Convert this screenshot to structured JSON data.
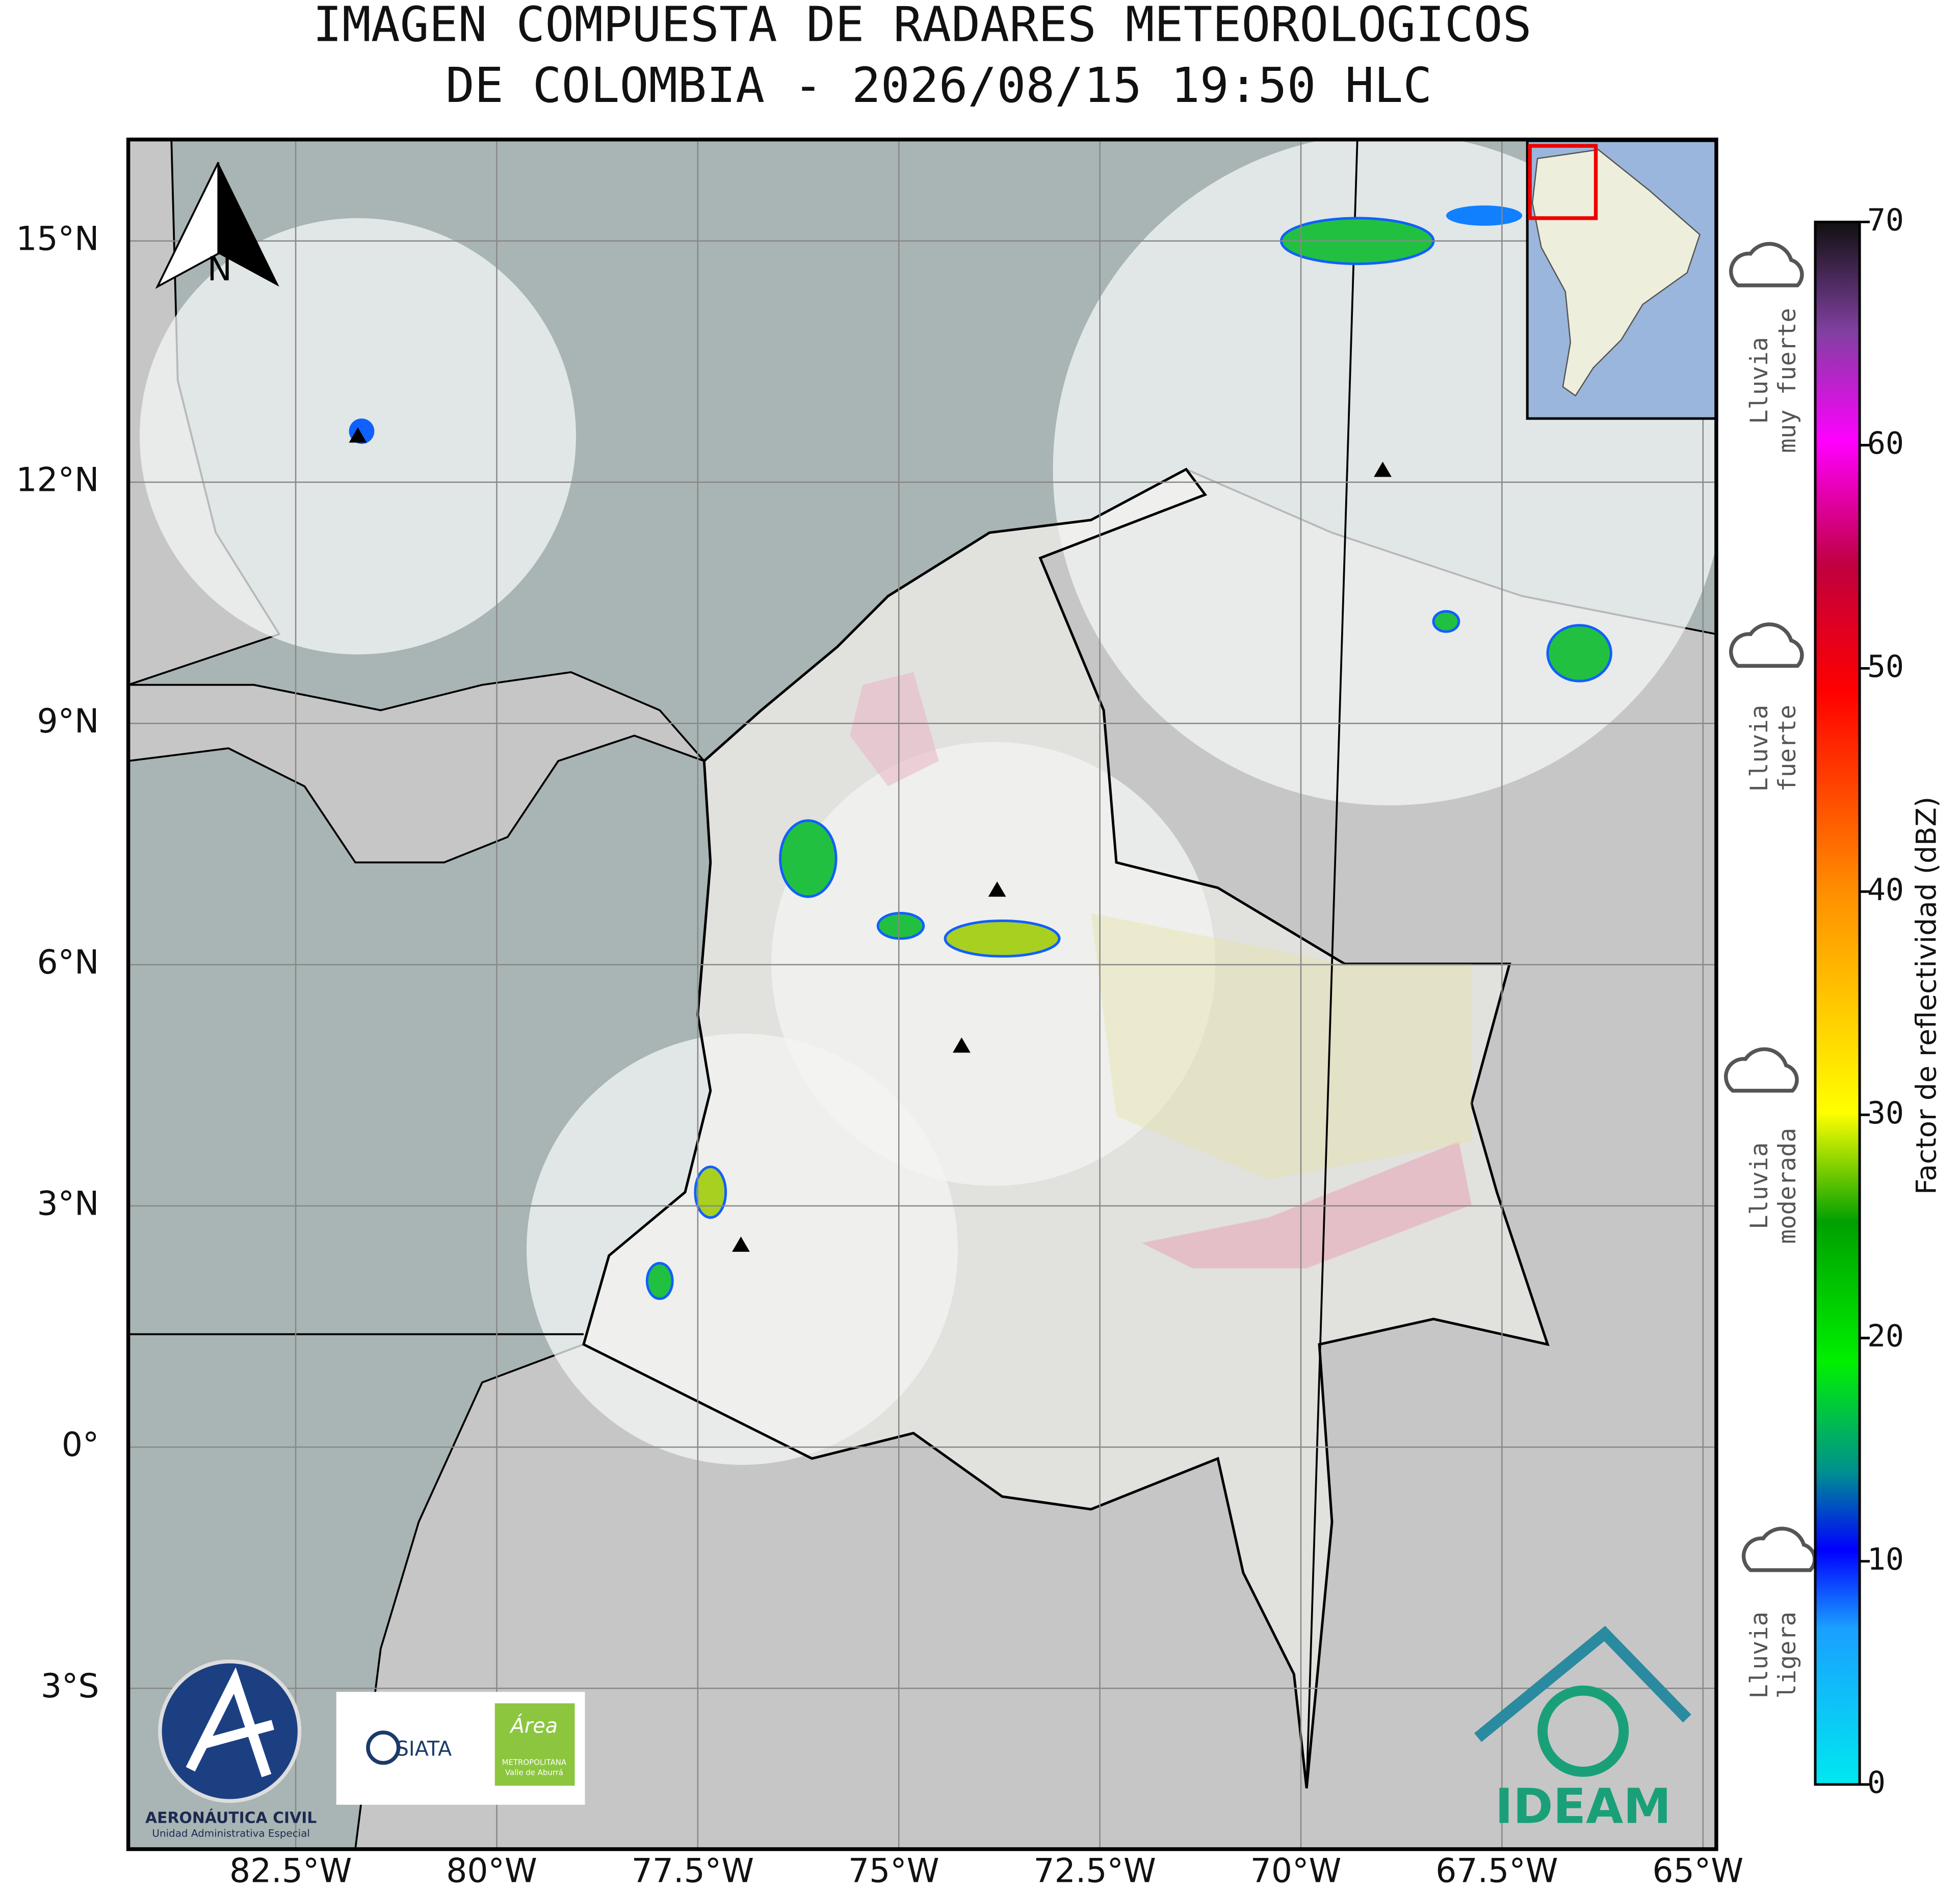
{
  "title": [
    "IMAGEN COMPUESTA DE RADARES METEOROLOGICOS",
    "DE COLOMBIA - 2026/08/15 19:50 HLC"
  ],
  "lon_ticks": [
    {
      "value": -82.5,
      "label": "82.5°W"
    },
    {
      "value": -80,
      "label": "80°W"
    },
    {
      "value": -77.5,
      "label": "77.5°W"
    },
    {
      "value": -75,
      "label": "75°W"
    },
    {
      "value": -72.5,
      "label": "72.5°W"
    },
    {
      "value": -70,
      "label": "70°W"
    },
    {
      "value": -67.5,
      "label": "67.5°W"
    },
    {
      "value": -65,
      "label": "65°W"
    }
  ],
  "lat_ticks": [
    {
      "value": 15,
      "label": "15°N"
    },
    {
      "value": 12,
      "label": "12°N"
    },
    {
      "value": 9,
      "label": "9°N"
    },
    {
      "value": 6,
      "label": "6°N"
    },
    {
      "value": 3,
      "label": "3°N"
    },
    {
      "value": 0,
      "label": "0°"
    },
    {
      "value": -3,
      "label": "3°S"
    }
  ],
  "north_label": "N",
  "colorbar": {
    "label": "Factor de reflectividad (dBZ)",
    "range": [
      0,
      70
    ],
    "ticks": [
      0,
      10,
      20,
      30,
      40,
      50,
      60,
      70
    ]
  },
  "rain_levels": [
    [
      "Lluvia",
      "muy fuerte"
    ],
    [
      "Lluvia",
      "fuerte"
    ],
    [
      "Lluvia",
      "moderada"
    ],
    [
      "Lluvia",
      "ligera"
    ]
  ],
  "logos": {
    "aerocivil": "AERONÁUTICA CIVIL",
    "aerocivil_sub": "Unidad Administrativa Especial",
    "siata": "SIATA",
    "area": "Área",
    "area_sub": "METROPOLITANA",
    "area_sub2": "Valle de Aburrá",
    "ideam": "IDEAM"
  }
}
